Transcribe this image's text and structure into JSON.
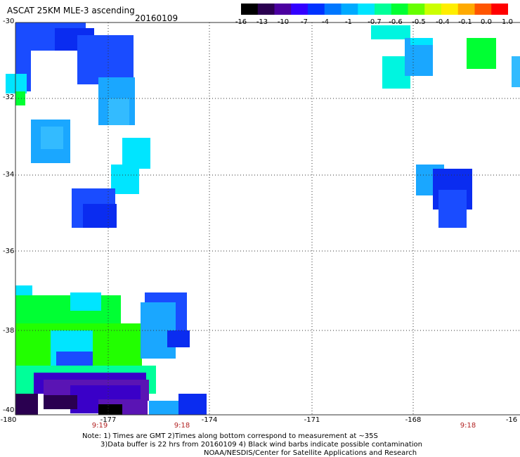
{
  "header": {
    "title": "ASCAT 25KM MLE-3 ascending",
    "date": "20160109"
  },
  "legend": {
    "tick_labels": [
      "-16",
      "-13",
      "-10",
      "-7",
      "-4",
      "-1",
      "-0.7",
      "-0.6",
      "-0.5",
      "-0.4",
      "-0.1",
      "0.0",
      "1.0"
    ],
    "colors": [
      "#000000",
      "#2a0050",
      "#4b00a0",
      "#3300ff",
      "#0033ff",
      "#0077ff",
      "#00aaff",
      "#00e5ff",
      "#00ff99",
      "#00ff33",
      "#66ff00",
      "#ccff00",
      "#ffee00",
      "#ffaa00",
      "#ff5500",
      "#ff0000"
    ]
  },
  "axes": {
    "lat_labels": [
      "-30",
      "-32",
      "-34",
      "-36",
      "-38",
      "-40"
    ],
    "lon_labels": [
      "-180",
      "-177",
      "-174",
      "-171",
      "-168",
      "-16"
    ]
  },
  "times": [
    "9:19",
    "9:18",
    "9:18"
  ],
  "footer": {
    "note_line1": "Note: 1) Times are GMT 2)Times along bottom correspond to measurement at ~35S",
    "note_line2": "3)Data buffer is 22 hrs from 20160109 4) Black wind barbs indicate possible contamination",
    "credit": "NOAA/NESDIS/Center for Satellite Applications and Research"
  },
  "colors": {
    "grid": "#333333",
    "time_label": "#b22222",
    "deep_blue": "#0a2cf0",
    "blue": "#1a4cff",
    "sky": "#1aa7ff",
    "light_sky": "#33bbff",
    "cyan": "#00e5ff",
    "aqua": "#00f5e0",
    "green": "#00ff33",
    "lime_green": "#22ff00",
    "teal_green": "#00ff99",
    "indigo": "#3a00c8",
    "purple": "#5a14b4",
    "dark_purple": "#2a0050",
    "black": "#000000"
  }
}
